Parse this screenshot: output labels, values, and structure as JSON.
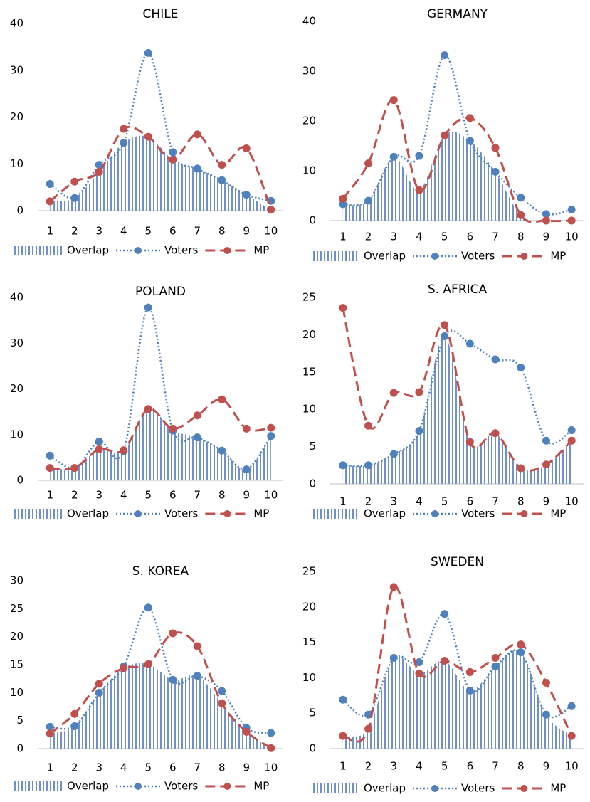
{
  "chart_data": [
    {
      "type": "line",
      "title": "CHILE",
      "categories": [
        1,
        2,
        3,
        4,
        5,
        6,
        7,
        8,
        9,
        10
      ],
      "ylim": [
        0,
        40
      ],
      "yticks": [
        0,
        10,
        20,
        30,
        40
      ],
      "series": [
        {
          "name": "Overlap",
          "color": "#6f90c8",
          "fill": "vertical-hatch",
          "values": [
            2,
            2.7,
            8.3,
            14.5,
            15.8,
            10.9,
            9,
            6.5,
            3.4,
            0.2
          ]
        },
        {
          "name": "Voters",
          "color": "#4f81bd",
          "line_style": "dotted",
          "values": [
            5.7,
            2.7,
            9.8,
            14.5,
            33.7,
            12.5,
            9,
            6.5,
            3.4,
            2.1
          ]
        },
        {
          "name": "MP",
          "color": "#c0504d",
          "line_style": "dashed",
          "values": [
            2,
            6.2,
            8.3,
            17.5,
            15.8,
            10.9,
            16.3,
            9.8,
            13.3,
            0.2
          ]
        }
      ]
    },
    {
      "type": "line",
      "title": "GERMANY",
      "categories": [
        1,
        2,
        3,
        4,
        5,
        6,
        7,
        8,
        9,
        10
      ],
      "ylim": [
        0,
        40
      ],
      "yticks": [
        0,
        10,
        20,
        30,
        40
      ],
      "series": [
        {
          "name": "Overlap",
          "color": "#6f90c8",
          "fill": "vertical-hatch",
          "values": [
            3.3,
            4,
            12.8,
            6.1,
            17.1,
            16,
            9.8,
            1.1,
            0,
            0
          ]
        },
        {
          "name": "Voters",
          "color": "#4f81bd",
          "line_style": "dotted",
          "values": [
            3.3,
            4,
            12.8,
            13,
            33.2,
            16,
            9.8,
            4.6,
            1.3,
            2.2
          ]
        },
        {
          "name": "MP",
          "color": "#c0504d",
          "line_style": "dashed",
          "values": [
            4.4,
            11.5,
            24.2,
            6.1,
            17.1,
            20.6,
            14.6,
            1.1,
            0,
            0
          ]
        }
      ]
    },
    {
      "type": "line",
      "title": "POLAND",
      "categories": [
        1,
        2,
        3,
        4,
        5,
        6,
        7,
        8,
        9,
        10
      ],
      "ylim": [
        0,
        40
      ],
      "yticks": [
        0,
        10,
        20,
        30,
        40
      ],
      "series": [
        {
          "name": "Overlap",
          "color": "#6f90c8",
          "fill": "vertical-hatch",
          "values": [
            2.7,
            2.7,
            6.8,
            6.4,
            15.6,
            10.9,
            9.4,
            6.5,
            2.4,
            9.7
          ]
        },
        {
          "name": "Voters",
          "color": "#4f81bd",
          "line_style": "dotted",
          "values": [
            5.4,
            2.7,
            8.5,
            6.4,
            37.8,
            10.9,
            9.4,
            6.5,
            2.4,
            9.7
          ]
        },
        {
          "name": "MP",
          "color": "#c0504d",
          "line_style": "dashed",
          "values": [
            2.7,
            2.7,
            6.8,
            6.6,
            15.6,
            11.3,
            14.2,
            17.7,
            11.3,
            11.5
          ]
        }
      ]
    },
    {
      "type": "line",
      "title": "S. AFRICA",
      "categories": [
        1,
        2,
        3,
        4,
        5,
        6,
        7,
        8,
        9,
        10
      ],
      "ylim": [
        0,
        25
      ],
      "yticks": [
        0,
        5,
        10,
        15,
        20,
        25
      ],
      "series": [
        {
          "name": "Overlap",
          "color": "#6f90c8",
          "fill": "vertical-hatch",
          "values": [
            2.5,
            2.5,
            4,
            7.1,
            19.8,
            5.6,
            6.8,
            2.1,
            2.6,
            5.8
          ]
        },
        {
          "name": "Voters",
          "color": "#4f81bd",
          "line_style": "dotted",
          "values": [
            2.5,
            2.5,
            4,
            7.1,
            19.8,
            18.8,
            16.7,
            15.6,
            5.8,
            7.2
          ]
        },
        {
          "name": "MP",
          "color": "#c0504d",
          "line_style": "dashed",
          "values": [
            23.6,
            7.8,
            12.2,
            12.3,
            21.3,
            5.6,
            6.8,
            2.1,
            2.6,
            5.8
          ]
        }
      ]
    },
    {
      "type": "line",
      "title": "S. KOREA",
      "categories": [
        1,
        2,
        3,
        4,
        5,
        6,
        7,
        8,
        9,
        10
      ],
      "ylim": [
        0,
        30
      ],
      "yticks": [
        0,
        5,
        10,
        15,
        20,
        25,
        30
      ],
      "series": [
        {
          "name": "Overlap",
          "color": "#6f90c8",
          "fill": "vertical-hatch",
          "values": [
            2.7,
            4,
            10,
            14.4,
            15.1,
            12.3,
            13,
            8.1,
            3,
            0.1
          ]
        },
        {
          "name": "Voters",
          "color": "#4f81bd",
          "line_style": "dotted",
          "values": [
            3.9,
            4,
            10,
            14.7,
            25.2,
            12.3,
            13,
            10.3,
            3.7,
            2.8
          ]
        },
        {
          "name": "MP",
          "color": "#c0504d",
          "line_style": "dashed",
          "values": [
            2.7,
            6.2,
            11.6,
            14.4,
            15.1,
            20.6,
            18.3,
            8.1,
            3,
            0.1
          ]
        }
      ]
    },
    {
      "type": "line",
      "title": "SWEDEN",
      "categories": [
        1,
        2,
        3,
        4,
        5,
        6,
        7,
        8,
        9,
        10
      ],
      "ylim": [
        0,
        25
      ],
      "yticks": [
        0,
        5,
        10,
        15,
        20,
        25
      ],
      "series": [
        {
          "name": "Overlap",
          "color": "#6f90c8",
          "fill": "vertical-hatch",
          "values": [
            1.8,
            2.8,
            12.8,
            10.6,
            12.4,
            8.2,
            11.6,
            13.6,
            4.8,
            1.8
          ]
        },
        {
          "name": "Voters",
          "color": "#4f81bd",
          "line_style": "dotted",
          "values": [
            6.9,
            4.8,
            12.8,
            12.2,
            19,
            8.2,
            11.6,
            13.6,
            4.8,
            6
          ]
        },
        {
          "name": "MP",
          "color": "#c0504d",
          "line_style": "dashed",
          "values": [
            1.8,
            2.8,
            22.8,
            10.6,
            12.4,
            10.8,
            12.8,
            14.7,
            9.3,
            1.8
          ]
        }
      ]
    }
  ]
}
